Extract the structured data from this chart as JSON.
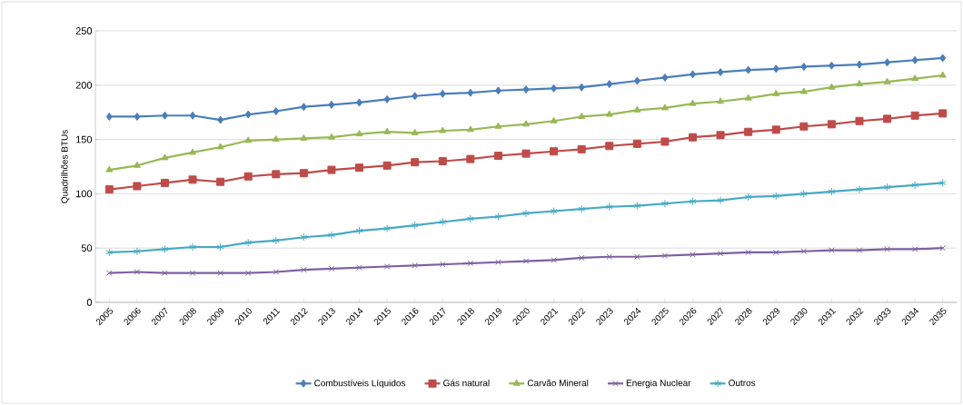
{
  "chart_data": {
    "type": "line",
    "ylabel": "Quadrilhões BTUs",
    "categories": [
      "2005",
      "2006",
      "2007",
      "2008",
      "2009",
      "2010",
      "2011",
      "2012",
      "2013",
      "2014",
      "2015",
      "2016",
      "2017",
      "2018",
      "2019",
      "2020",
      "2021",
      "2022",
      "2023",
      "2024",
      "2025",
      "2026",
      "2027",
      "2028",
      "2029",
      "2030",
      "2031",
      "2032",
      "2033",
      "2034",
      "2035"
    ],
    "series": [
      {
        "name": "Combustíveis Líquidos",
        "color": "#4a7ebb",
        "marker": "diamond",
        "values": [
          171,
          171,
          172,
          172,
          168,
          173,
          176,
          180,
          182,
          184,
          187,
          190,
          192,
          193,
          195,
          196,
          197,
          198,
          201,
          204,
          207,
          210,
          212,
          214,
          215,
          217,
          218,
          219,
          221,
          223,
          225
        ]
      },
      {
        "name": "Gás natural",
        "color": "#be4b48",
        "marker": "square",
        "values": [
          104,
          107,
          110,
          113,
          111,
          116,
          118,
          119,
          122,
          124,
          126,
          129,
          130,
          132,
          135,
          137,
          139,
          141,
          144,
          146,
          148,
          152,
          154,
          157,
          159,
          162,
          164,
          167,
          169,
          172,
          174
        ]
      },
      {
        "name": "Carvão Mineral",
        "color": "#98b954",
        "marker": "triangle",
        "values": [
          122,
          126,
          133,
          138,
          143,
          149,
          150,
          151,
          152,
          155,
          157,
          156,
          158,
          159,
          162,
          164,
          167,
          171,
          173,
          177,
          179,
          183,
          185,
          188,
          192,
          194,
          198,
          201,
          203,
          206,
          209
        ]
      },
      {
        "name": "Energia Nuclear",
        "color": "#7d60a0",
        "marker": "cross",
        "values": [
          27,
          28,
          27,
          27,
          27,
          27,
          28,
          30,
          31,
          32,
          33,
          34,
          35,
          36,
          37,
          38,
          39,
          41,
          42,
          42,
          43,
          44,
          45,
          46,
          46,
          47,
          48,
          48,
          49,
          49,
          50
        ]
      },
      {
        "name": "Outros",
        "color": "#46aac5",
        "marker": "cross",
        "values": [
          46,
          47,
          49,
          51,
          51,
          55,
          57,
          60,
          62,
          66,
          68,
          71,
          74,
          77,
          79,
          82,
          84,
          86,
          88,
          89,
          91,
          93,
          94,
          97,
          98,
          100,
          102,
          104,
          106,
          108,
          110
        ]
      }
    ],
    "ylim": [
      0,
      250
    ],
    "yticks": [
      0,
      50,
      100,
      150,
      200,
      250
    ],
    "grid": "y",
    "legend": "bottom",
    "line_style": "solid"
  }
}
